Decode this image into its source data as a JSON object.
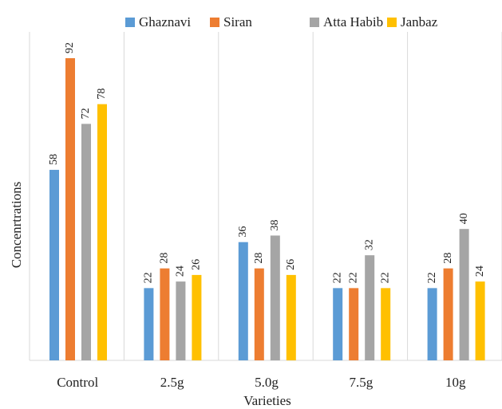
{
  "chart_data": {
    "type": "bar",
    "x_label": "Varieties",
    "y_label": "Concenrtrations",
    "categories": [
      "Control",
      "2.5g",
      "5.0g",
      "7.5g",
      "10g"
    ],
    "series": [
      {
        "name": "Ghaznavi",
        "color": "#5b9bd5",
        "values": [
          58,
          22,
          36,
          22,
          22
        ]
      },
      {
        "name": "Siran",
        "color": "#ed7d31",
        "values": [
          92,
          28,
          28,
          22,
          28
        ]
      },
      {
        "name": "Atta Habib",
        "color": "#a5a5a5",
        "values": [
          72,
          24,
          38,
          32,
          40
        ]
      },
      {
        "name": "Janbaz",
        "color": "#ffc000",
        "values": [
          78,
          26,
          26,
          22,
          24
        ]
      }
    ],
    "ylim": [
      0,
      100
    ],
    "legend": "top"
  }
}
